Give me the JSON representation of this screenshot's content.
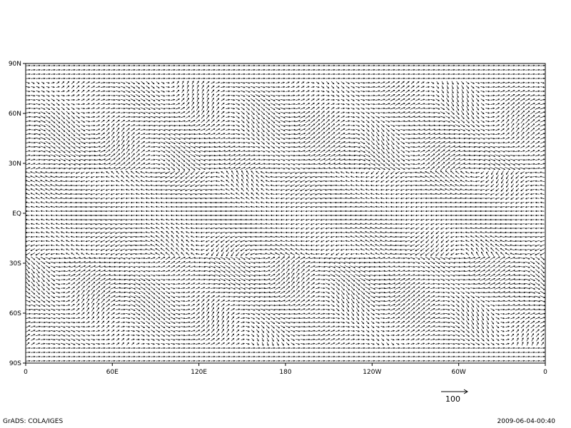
{
  "chart_data": {
    "type": "vector",
    "lat_ticks": [
      "90N",
      "60N",
      "30N",
      "EQ",
      "30S",
      "60S",
      "90S"
    ],
    "lon_ticks": [
      "0",
      "60E",
      "120E",
      "180",
      "120W",
      "60W",
      "0"
    ],
    "lat_range": [
      -90,
      90
    ],
    "lon_range": [
      0,
      360
    ],
    "reference_vector": "100",
    "grid": false
  },
  "footer": {
    "software": "GrADS: COLA/IGES",
    "timestamp": "2009-06-04-00:40"
  },
  "colors": {
    "foreground": "#000000",
    "background": "#ffffff"
  }
}
